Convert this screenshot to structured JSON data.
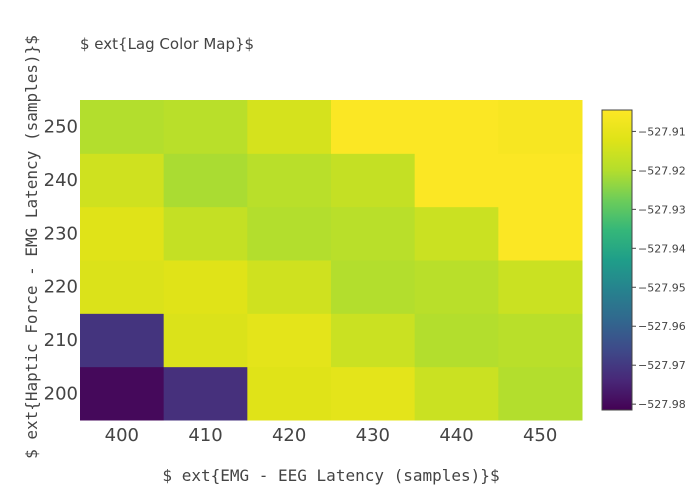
{
  "chart_data": {
    "type": "heatmap",
    "title": "$ ext{Lag Color Map}$",
    "xlabel": "$ ext{EMG - EEG Latency (samples)}$",
    "ylabel": "$ ext{Haptic Force - EMG Latency (samples)}$",
    "x": [
      400,
      410,
      420,
      430,
      440,
      450
    ],
    "y": [
      200,
      210,
      220,
      230,
      240,
      250
    ],
    "x_ticks": [
      "400",
      "410",
      "420",
      "430",
      "440",
      "450"
    ],
    "y_ticks": [
      "200",
      "210",
      "220",
      "230",
      "240",
      "250"
    ],
    "z": [
      [
        -527.98,
        -527.972,
        -527.912,
        -527.911,
        -527.916,
        -527.92
      ],
      [
        -527.971,
        -527.913,
        -527.911,
        -527.916,
        -527.92,
        -527.919
      ],
      [
        -527.913,
        -527.912,
        -527.915,
        -527.92,
        -527.919,
        -527.916
      ],
      [
        -527.912,
        -527.917,
        -527.92,
        -527.919,
        -527.916,
        -527.905
      ],
      [
        -527.915,
        -527.921,
        -527.919,
        -527.917,
        -527.905,
        -527.905
      ],
      [
        -527.92,
        -527.919,
        -527.914,
        -527.905,
        -527.905,
        -527.906
      ]
    ],
    "zlim": [
      -527.9815,
      -527.9045
    ],
    "colorscale": "Viridis",
    "colorbar_ticks": [
      -527.91,
      -527.92,
      -527.93,
      -527.94,
      -527.95,
      -527.96,
      -527.97,
      -527.98
    ],
    "colorbar_tick_labels": [
      "−527.91",
      "−527.92",
      "−527.93",
      "−527.94",
      "−527.95",
      "−527.96",
      "−527.97",
      "−527.98"
    ]
  }
}
